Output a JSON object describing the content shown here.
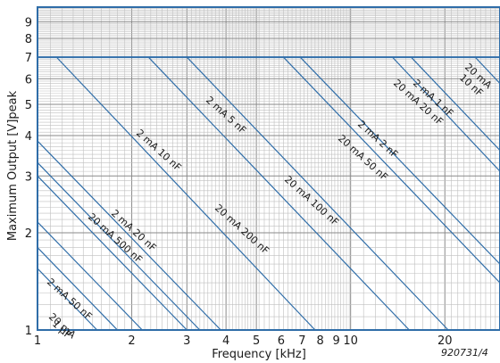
{
  "chart_data": {
    "type": "line",
    "title": "",
    "xlabel": "Frequency [kHz]",
    "ylabel": "Maximum Output [V]peak",
    "xscale": "log",
    "yscale": "log",
    "xlim": [
      1,
      30
    ],
    "ylim": [
      1,
      10
    ],
    "grid": true,
    "legend": "none",
    "x_ticks": [
      1,
      2,
      3,
      4,
      5,
      6,
      7,
      8,
      9,
      10,
      20
    ],
    "x_tick_labels": [
      "1",
      "2",
      "3",
      "4",
      "5",
      "6",
      "7",
      "8",
      "9",
      "10",
      "20"
    ],
    "y_ticks": [
      1,
      2,
      3,
      4,
      5,
      6,
      7,
      8,
      9
    ],
    "y_tick_labels": [
      "1",
      "2",
      "3",
      "4",
      "5",
      "6",
      "7",
      "8",
      "9"
    ],
    "limit_line": {
      "y": 7
    },
    "series": [
      {
        "label": "1 µF",
        "x": [
          1,
          1.55
        ],
        "y": [
          1.55,
          1
        ]
      },
      {
        "label": "20 mA 1 µF",
        "x": [
          1,
          1.8
        ],
        "y": [
          1.8,
          1
        ]
      },
      {
        "label": "2 mA 50 nF",
        "x": [
          1,
          2.16
        ],
        "y": [
          2.16,
          1
        ]
      },
      {
        "label": "20 mA 500 nF",
        "x": [
          1,
          3.0
        ],
        "y": [
          3.0,
          1
        ]
      },
      {
        "label": "2 mA 20 nF",
        "x": [
          1,
          3.3
        ],
        "y": [
          3.3,
          1
        ]
      },
      {
        "label": "2 mA 10 nF",
        "x": [
          1,
          3.85
        ],
        "y": [
          3.85,
          1
        ]
      },
      {
        "label": "20 mA 200 nF",
        "x": [
          1.15,
          7.7
        ],
        "y": [
          7,
          1
        ]
      },
      {
        "label": "2 mA 5 nF",
        "x": [
          2.26,
          15.4
        ],
        "y": [
          7,
          1
        ]
      },
      {
        "label": "20 mA 100 nF",
        "x": [
          3.0,
          20.5
        ],
        "y": [
          7,
          1
        ]
      },
      {
        "label": "20 mA 50 nF",
        "x": [
          6.1,
          30
        ],
        "y": [
          7,
          1.4
        ]
      },
      {
        "label": "2 mA 2 nF",
        "x": [
          6.9,
          30
        ],
        "y": [
          7,
          1.6
        ]
      },
      {
        "label": "20 mA 20 nF",
        "x": [
          13.6,
          30
        ],
        "y": [
          7,
          3.1
        ]
      },
      {
        "label": "2 mA 1 nF",
        "x": [
          15.6,
          30
        ],
        "y": [
          7,
          3.6
        ]
      },
      {
        "label": "20 mA 10 nF",
        "x": [
          25,
          30
        ],
        "y": [
          7,
          5.8
        ]
      }
    ],
    "labels": [
      {
        "text": "1 µF"
      },
      {
        "text": "20 mA"
      },
      {
        "text": "2 mA 50 nF"
      },
      {
        "text": "20 mA 500 nF"
      },
      {
        "text": "2 mA 20 nF"
      },
      {
        "text": "2 mA 10 nF"
      },
      {
        "text": "20 mA 200 nF"
      },
      {
        "text": "2 mA 5 nF"
      },
      {
        "text": "20 mA 100 nF"
      },
      {
        "text": "20 mA 50 nF"
      },
      {
        "text": "2 mA 2 nF"
      },
      {
        "text": "20 mA 20 nF"
      },
      {
        "text": "2 mA 1 nF"
      },
      {
        "text": "20 mA"
      },
      {
        "text": "10 nF"
      }
    ],
    "reference": "920731/4",
    "colors": {
      "line": "#2f6da8",
      "grid": "#bfbfbf",
      "frame": "#2f6da8",
      "text": "#1a1a1a"
    }
  }
}
